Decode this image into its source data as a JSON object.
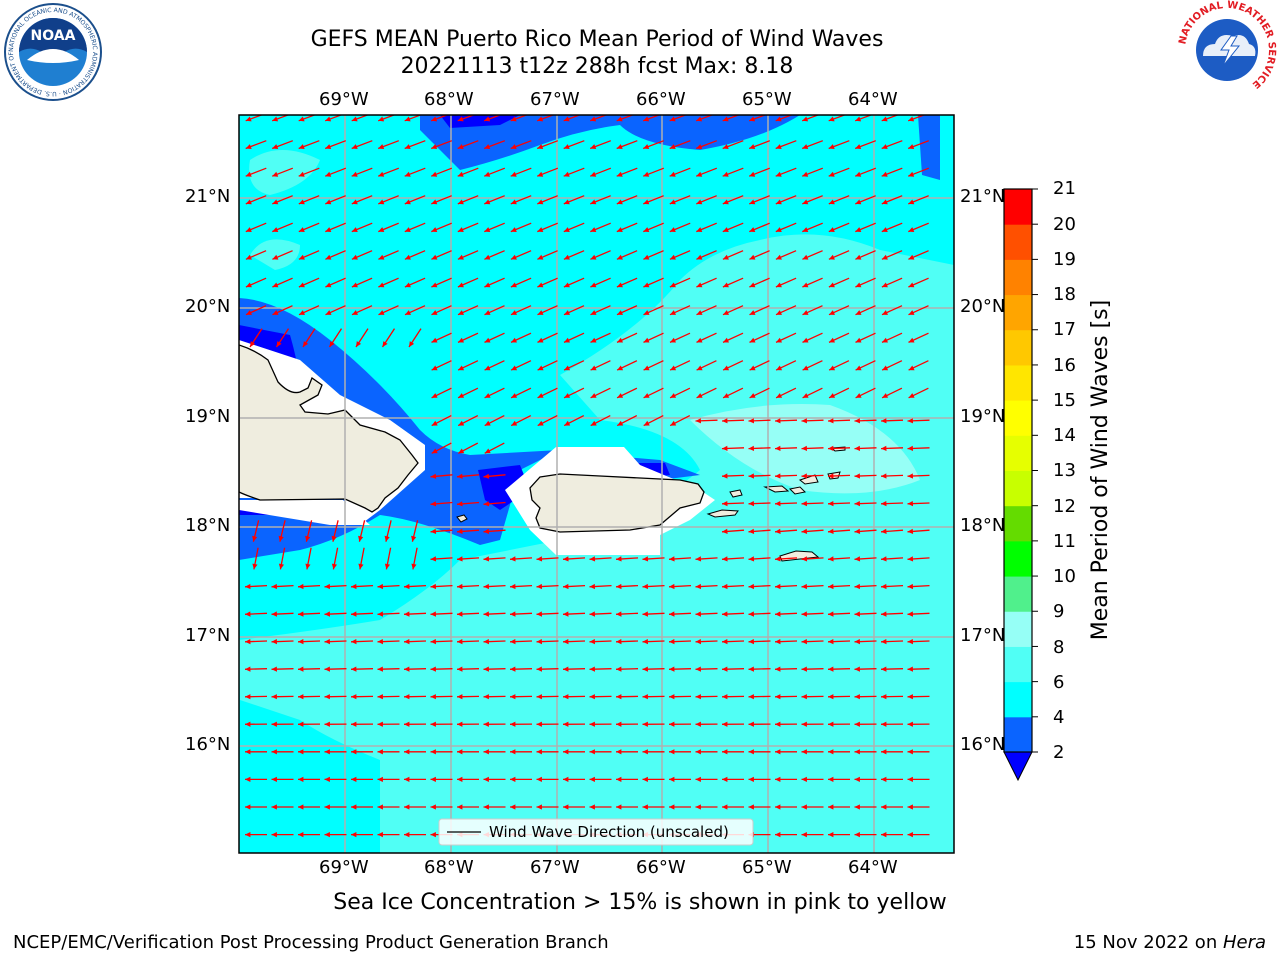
{
  "header": {
    "title_line1": "GEFS MEAN Puerto Rico Mean Period of Wind Waves",
    "title_line2": "20221113 t12z 288h fcst   Max: 8.18"
  },
  "logos": {
    "noaa_text": "NOAA",
    "noaa_ring": "NATIONAL OCEANIC AND ATMOSPHERIC ADMINISTRATION · U.S. DEPARTMENT OF COMMERCE",
    "nws_ring": "NATIONAL WEATHER SERVICE"
  },
  "map": {
    "lon_labels": [
      "69°W",
      "68°W",
      "67°W",
      "66°W",
      "65°W",
      "64°W"
    ],
    "lat_labels": [
      "21°N",
      "20°N",
      "19°N",
      "18°N",
      "17°N",
      "16°N"
    ],
    "legend_label": "Wind Wave Direction (unscaled)",
    "arrow_color": "#ff0000",
    "land_color": "#efeddf"
  },
  "colorbar": {
    "label": "Mean Period of Wind Waves [s]",
    "ticks": [
      "2",
      "4",
      "6",
      "8",
      "9",
      "10",
      "11",
      "12",
      "13",
      "14",
      "15",
      "16",
      "17",
      "18",
      "19",
      "20",
      "21"
    ],
    "under_color": "#0000ff",
    "colors": [
      "#0a64ff",
      "#00ffff",
      "#50fff5",
      "#96fff6",
      "#50f08c",
      "#00ff00",
      "#64dc00",
      "#c8ff00",
      "#e6ff00",
      "#ffff00",
      "#ffe600",
      "#ffc800",
      "#ffa500",
      "#ff8200",
      "#ff5000",
      "#ff0000"
    ]
  },
  "legend_text": {
    "ice_note": "Sea Ice Concentration > 15% is shown in pink to yellow"
  },
  "footer": {
    "left": "NCEP/EMC/Verification Post Processing Product Generation Branch",
    "date": "15 Nov 2022 on ",
    "machine": "Hera"
  }
}
